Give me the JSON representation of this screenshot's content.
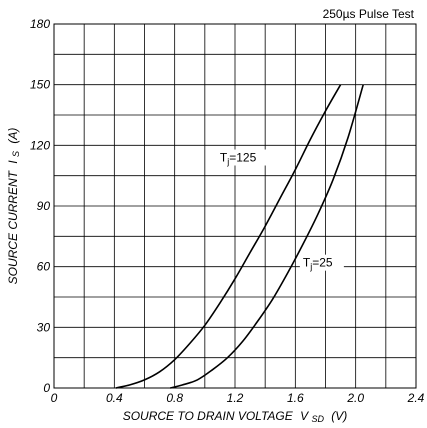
{
  "chart_data": {
    "type": "line",
    "annotation": "250µs Pulse Test",
    "xlabel": "SOURCE TO DRAIN VOLTAGE",
    "xlabel_symbol": "V",
    "xlabel_sub": "SD",
    "xlabel_unit": "(V)",
    "ylabel": "SOURCE CURRENT",
    "ylabel_symbol": "I",
    "ylabel_sub": "S",
    "ylabel_unit": "(A)",
    "xlim": [
      0,
      2.4
    ],
    "ylim": [
      0,
      180
    ],
    "xticks": [
      "0",
      "0.4",
      "0.8",
      "1.2",
      "1.6",
      "2.0",
      "2.4"
    ],
    "yticks": [
      "0",
      "30",
      "60",
      "90",
      "120",
      "150",
      "180"
    ],
    "grid": true,
    "series": [
      {
        "name": "Tj=125",
        "label_main": "T",
        "label_sub": "j",
        "label_rest": "=125",
        "x": [
          0.41,
          0.5,
          0.6,
          0.7,
          0.8,
          0.9,
          1.0,
          1.1,
          1.2,
          1.3,
          1.4,
          1.5,
          1.6,
          1.7,
          1.8,
          1.9
        ],
        "y": [
          0,
          1.5,
          4,
          8,
          14,
          22,
          31,
          42,
          54,
          67,
          80,
          94,
          108,
          123,
          137,
          150
        ]
      },
      {
        "name": "Tj=25",
        "label_main": "T",
        "label_sub": "j",
        "label_rest": "=25",
        "x": [
          0.77,
          0.85,
          0.95,
          1.05,
          1.15,
          1.25,
          1.35,
          1.45,
          1.55,
          1.65,
          1.75,
          1.85,
          1.95,
          2.05
        ],
        "y": [
          0,
          1.5,
          4,
          9,
          15,
          23,
          33,
          44,
          57,
          71,
          86,
          103,
          124,
          150
        ]
      }
    ]
  }
}
